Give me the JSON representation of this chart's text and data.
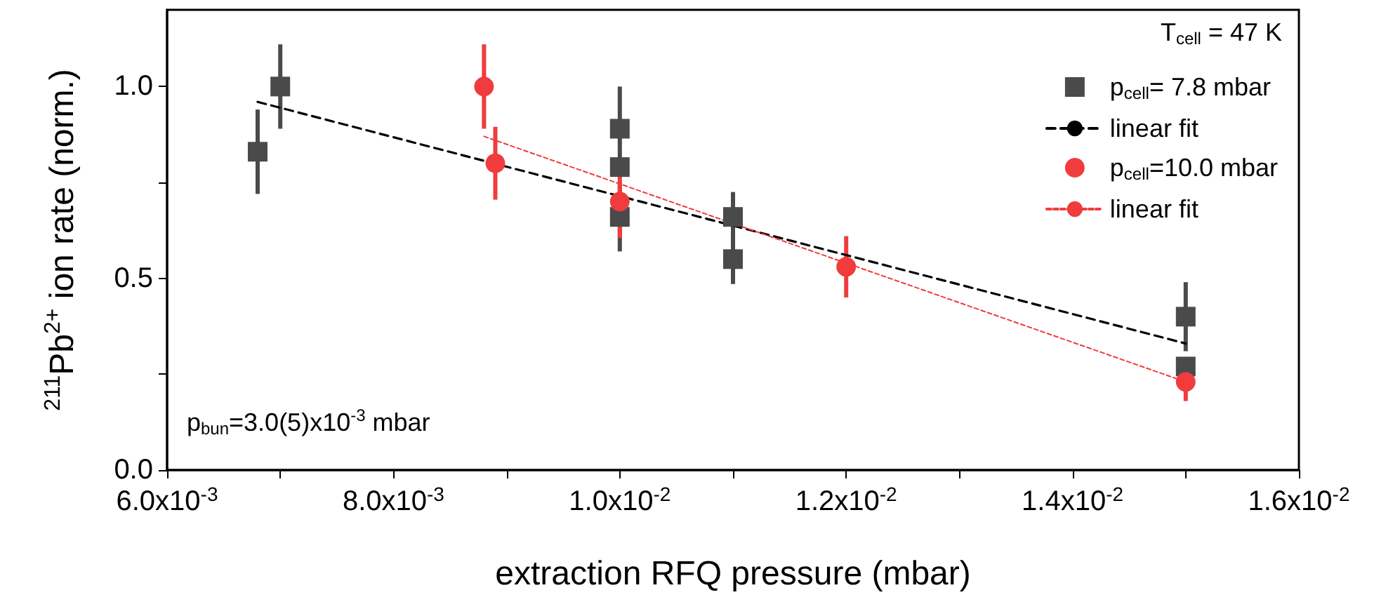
{
  "chart_data": {
    "type": "scatter",
    "ylabel": "$^{211}$Pb$^{2+}$ ion rate (norm.)",
    "xlabel": "extraction RFQ pressure (mbar)",
    "xlim": [
      0.006,
      0.016
    ],
    "xticks": [
      {
        "value": 0.006,
        "label": "6.0x10$^{-3}$"
      },
      {
        "value": 0.007,
        "label": null
      },
      {
        "value": 0.008,
        "label": "8.0x10$^{-3}$"
      },
      {
        "value": 0.009,
        "label": null
      },
      {
        "value": 0.01,
        "label": "1.0x10$^{-2}$"
      },
      {
        "value": 0.011,
        "label": null
      },
      {
        "value": 0.012,
        "label": "1.2x10$^{-2}$"
      },
      {
        "value": 0.013,
        "label": null
      },
      {
        "value": 0.014,
        "label": "1.4x10$^{-2}$"
      },
      {
        "value": 0.015,
        "label": null
      },
      {
        "value": 0.016,
        "label": "1.6x10$^{-2}$"
      }
    ],
    "ylim": [
      0,
      1.2
    ],
    "yticks": [
      {
        "value": 0,
        "label": "0.0"
      },
      {
        "value": 0.25,
        "label": null
      },
      {
        "value": 0.5,
        "label": "0.5"
      },
      {
        "value": 0.75,
        "label": null
      },
      {
        "value": 1,
        "label": "1.0"
      }
    ],
    "grid": false,
    "legend": "top right",
    "annotations": [
      "T$_{cell}$ = 47 K",
      "p$_{bun}$=3.0(5)x10$^{-3}$ mbar"
    ],
    "series": [
      {
        "name": "p$_{cell}$= 7.8 mbar",
        "marker": "square",
        "color": "#4a4a4a",
        "x": [
          0.0068,
          0.007,
          0.01,
          0.01,
          0.01,
          0.011,
          0.011,
          0.015,
          0.015
        ],
        "values": [
          0.83,
          1.0,
          0.89,
          0.79,
          0.66,
          0.66,
          0.55,
          0.4,
          0.27
        ],
        "errors": [
          0.11,
          0.11,
          0.11,
          null,
          0.09,
          0.065,
          0.065,
          0.09,
          null
        ]
      },
      {
        "name": "linear fit",
        "type": "line",
        "marker": "none",
        "line_style": "dashed",
        "color": "#000000",
        "x": [
          0.0068,
          0.015
        ],
        "values": [
          0.96,
          0.33
        ]
      },
      {
        "name": "p$_{cell}$=10.0 mbar",
        "marker": "circle",
        "color": "#f03c3c",
        "x": [
          0.0088,
          0.0089,
          0.01,
          0.012,
          0.015
        ],
        "values": [
          1.0,
          0.8,
          0.7,
          0.53,
          0.23
        ],
        "errors": [
          0.11,
          0.095,
          0.095,
          0.08,
          0.05
        ]
      },
      {
        "name": "linear fit",
        "type": "line",
        "marker": "none",
        "line_style": "dotted",
        "color": "#f03c3c",
        "x": [
          0.0088,
          0.015
        ],
        "values": [
          0.87,
          0.23
        ]
      }
    ]
  }
}
